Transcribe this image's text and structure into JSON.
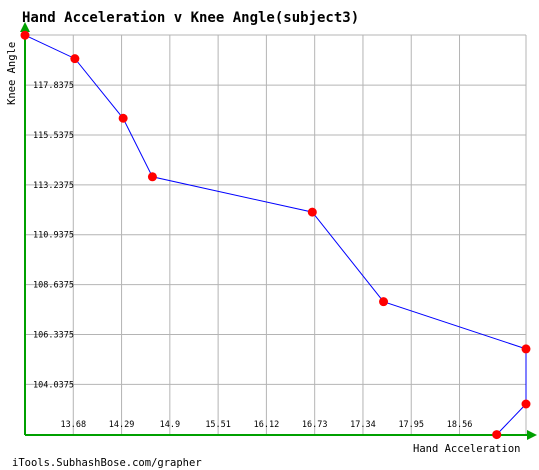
{
  "chart_data": {
    "type": "line",
    "title": "Hand Acceleration v Knee Angle(subject3)",
    "xlabel": "Hand Acceleration",
    "ylabel": "Knee Angle",
    "footer": "iTools.SubhashBose.com/grapher",
    "x_ticks": [
      "13.68",
      "14.29",
      "14.9",
      "15.51",
      "16.12",
      "16.73",
      "17.34",
      "17.95",
      "18.56"
    ],
    "y_ticks": [
      "117.8375",
      "115.5375",
      "113.2375",
      "110.9375",
      "108.6375",
      "106.3375",
      "104.0375"
    ],
    "xlim": [
      13.07,
      19.4
    ],
    "ylim": [
      101.7,
      120.15
    ],
    "grid": true,
    "colors": {
      "line": "#0000ff",
      "point": "#ff0000",
      "axis": "#00a000",
      "grid": "#b4b4b4"
    },
    "points": [
      {
        "x": 13.07,
        "y": 120.14
      },
      {
        "x": 13.7,
        "y": 119.06
      },
      {
        "x": 14.31,
        "y": 116.31
      },
      {
        "x": 14.68,
        "y": 113.61
      },
      {
        "x": 16.7,
        "y": 111.98
      },
      {
        "x": 17.6,
        "y": 107.85
      },
      {
        "x": 19.4,
        "y": 105.67
      },
      {
        "x": 19.4,
        "y": 103.13
      },
      {
        "x": 19.03,
        "y": 101.72
      }
    ]
  }
}
